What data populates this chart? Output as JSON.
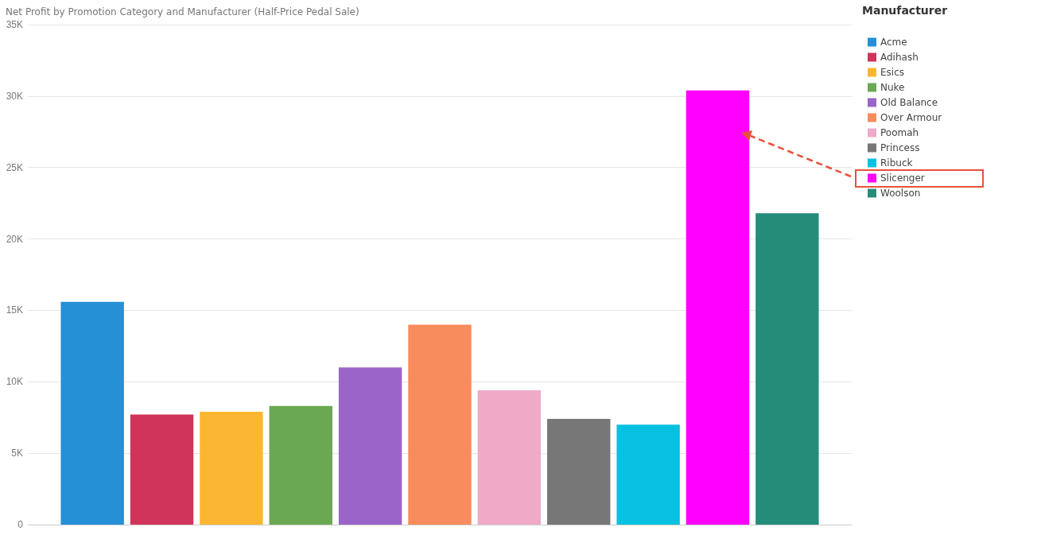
{
  "chart_data": {
    "type": "bar",
    "title": "Net Profit by Promotion Category and Manufacturer (Half-Price Pedal Sale)",
    "legend_title": "Manufacturer",
    "categories": [
      null
    ],
    "series": [
      {
        "name": "Acme",
        "color": "#2590d6",
        "values": [
          15600
        ]
      },
      {
        "name": "Adihash",
        "color": "#d1345b",
        "values": [
          7700
        ]
      },
      {
        "name": "Esics",
        "color": "#fcb732",
        "values": [
          7900
        ]
      },
      {
        "name": "Nuke",
        "color": "#6aa851",
        "values": [
          8300
        ]
      },
      {
        "name": "Old Balance",
        "color": "#9b64c9",
        "values": [
          11000
        ]
      },
      {
        "name": "Over Armour",
        "color": "#f98c5c",
        "values": [
          14000
        ]
      },
      {
        "name": "Poomah",
        "color": "#efaac8",
        "values": [
          9400
        ]
      },
      {
        "name": "Princess",
        "color": "#777777",
        "values": [
          7400
        ]
      },
      {
        "name": "Ribuck",
        "color": "#08c1e0",
        "values": [
          7000
        ]
      },
      {
        "name": "Slicenger",
        "color": "#ff00ff",
        "values": [
          30400
        ]
      },
      {
        "name": "Woolson",
        "color": "#268c7a",
        "values": [
          21800
        ]
      }
    ],
    "ylim": [
      0,
      35000
    ],
    "yticks": [
      {
        "value": 0,
        "label": "0"
      },
      {
        "value": 5000,
        "label": "5K"
      },
      {
        "value": 10000,
        "label": "10K"
      },
      {
        "value": 15000,
        "label": "15K"
      },
      {
        "value": 20000,
        "label": "20K"
      },
      {
        "value": 25000,
        "label": "25K"
      },
      {
        "value": 30000,
        "label": "30K"
      },
      {
        "value": 35000,
        "label": "35K"
      }
    ],
    "grid": "y",
    "legend": "right"
  }
}
